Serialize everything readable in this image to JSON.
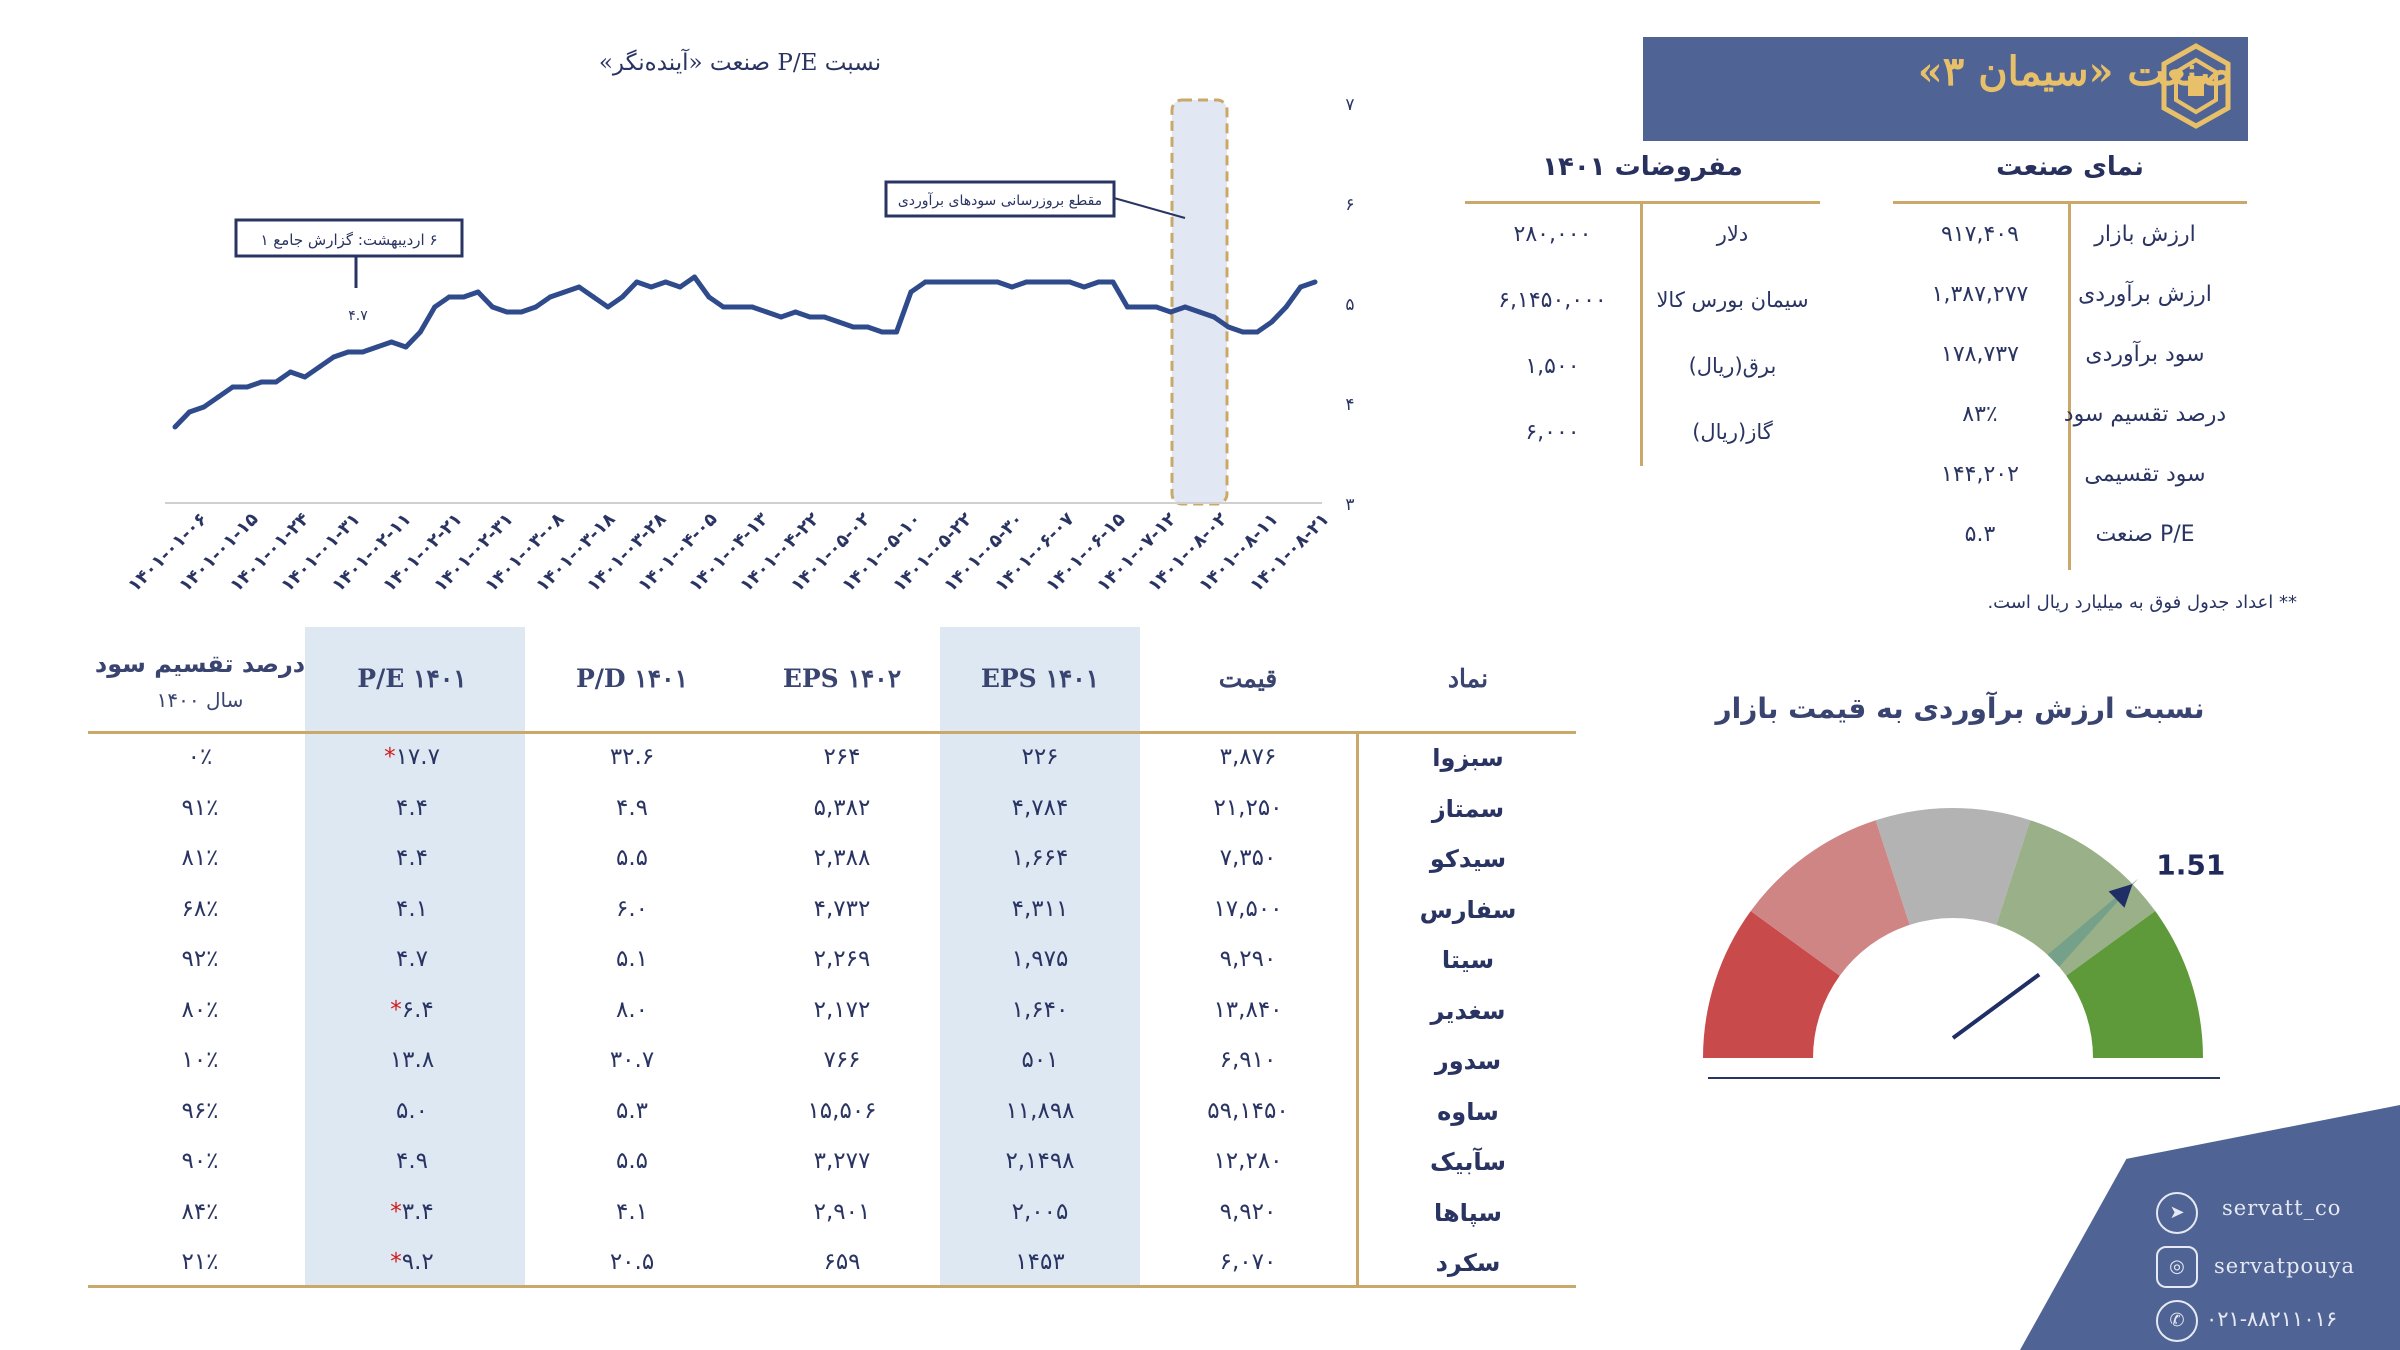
{
  "header": {
    "title": "صنعت «سیمان ۳»"
  },
  "industry_overview": {
    "title": "نمای صنعت",
    "rows": [
      {
        "label": "ارزش بازار",
        "value": "۹۱۷,۴۰۹"
      },
      {
        "label": "ارزش برآوردی",
        "value": "۱,۳۸۷,۲۷۷"
      },
      {
        "label": "سود برآوردی",
        "value": "۱۷۸,۷۳۷"
      },
      {
        "label": "درصد تقسیم سود",
        "value": "۸۳٪"
      },
      {
        "label": "سود تقسیمی",
        "value": "۱۴۴,۲۰۲"
      },
      {
        "label": "P/E صنعت",
        "value": "۵.۳"
      }
    ]
  },
  "assumptions": {
    "title": "مفروضات ۱۴۰۱",
    "rows": [
      {
        "label": "دلار",
        "value": "۲۸۰,۰۰۰"
      },
      {
        "label": "سیمان بورس کالا",
        "value": "۶,۱۴۵۰,۰۰۰"
      },
      {
        "label": "برق(ریال)",
        "value": "۱,۵۰۰"
      },
      {
        "label": "گاز(ریال)",
        "value": "۶,۰۰۰"
      }
    ]
  },
  "footnote": "** اعداد جدول فوق به میلیارد ریال است.",
  "chart_data": {
    "type": "line",
    "title": "نسبت P/E صنعت «آینده‌نگر»",
    "ylim": [
      3,
      7
    ],
    "yticks": [
      "۷",
      "۶",
      "۵",
      "۴",
      "۳"
    ],
    "x_tick_labels": [
      "۱۴۰۱-۰۱-۰۶",
      "۱۴۰۱-۰۱-۱۵",
      "۱۴۰۱-۰۱-۲۴",
      "۱۴۰۱-۰۱-۳۱",
      "۱۴۰۱-۰۲-۱۱",
      "۱۴۰۱-۰۲-۲۱",
      "۱۴۰۱-۰۲-۳۱",
      "۱۴۰۱-۰۳-۰۸",
      "۱۴۰۱-۰۳-۱۸",
      "۱۴۰۱-۰۳-۲۸",
      "۱۴۰۱-۰۴-۰۵",
      "۱۴۰۱-۰۴-۱۳",
      "۱۴۰۱-۰۴-۲۲",
      "۱۴۰۱-۰۵-۰۲",
      "۱۴۰۱-۰۵-۱۰",
      "۱۴۰۱-۰۵-۲۲",
      "۱۴۰۱-۰۵-۳۰",
      "۱۴۰۱-۰۶-۰۷",
      "۱۴۰۱-۰۶-۱۵",
      "۱۴۰۱-۰۷-۱۲",
      "۱۴۰۱-۰۸-۰۲",
      "۱۴۰۱-۰۸-۱۱",
      "۱۴۰۱-۰۸-۲۱"
    ],
    "values": [
      3.75,
      3.9,
      3.95,
      4.05,
      4.15,
      4.15,
      4.2,
      4.2,
      4.3,
      4.25,
      4.35,
      4.45,
      4.5,
      4.5,
      4.55,
      4.6,
      4.55,
      4.7,
      4.95,
      5.05,
      5.05,
      5.1,
      4.95,
      4.9,
      4.9,
      4.95,
      5.05,
      5.1,
      5.15,
      5.05,
      4.95,
      5.05,
      5.2,
      5.15,
      5.2,
      5.15,
      5.25,
      5.05,
      4.95,
      4.95,
      4.95,
      4.9,
      4.85,
      4.9,
      4.85,
      4.85,
      4.8,
      4.75,
      4.75,
      4.7,
      4.7,
      5.1,
      5.2,
      5.2,
      5.2,
      5.2,
      5.2,
      5.2,
      5.15,
      5.2,
      5.2,
      5.2,
      5.2,
      5.15,
      5.2,
      5.2,
      4.95,
      4.95,
      4.95,
      4.9,
      4.95,
      4.9,
      4.85,
      4.75,
      4.7,
      4.7,
      4.8,
      4.95,
      5.15,
      5.2
    ],
    "annotations": [
      {
        "text": "۶ اردیبهشت: گزارش جامع ۱",
        "value_label": "۴.۷"
      },
      {
        "text": "مقطع بروزرسانی سودهای برآوردی"
      }
    ],
    "highlight_color": "#e2e7f4"
  },
  "stock_table": {
    "columns": [
      "نماد",
      "قیمت",
      "EPS ۱۴۰۱",
      "EPS ۱۴۰۲",
      "P/D ۱۴۰۱",
      "P/E  ۱۴۰۱",
      "درصد تقسیم سود",
      "سال ۱۴۰۰"
    ],
    "rows": [
      {
        "symbol": "سبزوا",
        "price": "۳,۸۷۶",
        "eps1401": "۲۲۶",
        "eps1402": "۲۶۴",
        "pd": "۳۲.۶",
        "pe": "۱۷.۷",
        "star": true,
        "div": "۰٪"
      },
      {
        "symbol": "سمتاز",
        "price": "۲۱,۲۵۰",
        "eps1401": "۴,۷۸۴",
        "eps1402": "۵,۳۸۲",
        "pd": "۴.۹",
        "pe": "۴.۴",
        "star": false,
        "div": "۹۱٪"
      },
      {
        "symbol": "سیدکو",
        "price": "۷,۳۵۰",
        "eps1401": "۱,۶۶۴",
        "eps1402": "۲,۳۸۸",
        "pd": "۵.۵",
        "pe": "۴.۴",
        "star": false,
        "div": "۸۱٪"
      },
      {
        "symbol": "سفارس",
        "price": "۱۷,۵۰۰",
        "eps1401": "۴,۳۱۱",
        "eps1402": "۴,۷۳۲",
        "pd": "۶.۰",
        "pe": "۴.۱",
        "star": false,
        "div": "۶۸٪"
      },
      {
        "symbol": "سیتا",
        "price": "۹,۲۹۰",
        "eps1401": "۱,۹۷۵",
        "eps1402": "۲,۲۶۹",
        "pd": "۵.۱",
        "pe": "۴.۷",
        "star": false,
        "div": "۹۲٪"
      },
      {
        "symbol": "سغدیر",
        "price": "۱۳,۸۴۰",
        "eps1401": "۱,۶۴۰",
        "eps1402": "۲,۱۷۲",
        "pd": "۸.۰",
        "pe": "۶.۴",
        "star": true,
        "div": "۸۰٪"
      },
      {
        "symbol": "سدور",
        "price": "۶,۹۱۰",
        "eps1401": "۵۰۱",
        "eps1402": "۷۶۶",
        "pd": "۳۰.۷",
        "pe": "۱۳.۸",
        "star": false,
        "div": "۱۰٪"
      },
      {
        "symbol": "ساوه",
        "price": "۵۹,۱۴۵۰",
        "eps1401": "۱۱,۸۹۸",
        "eps1402": "۱۵,۵۰۶",
        "pd": "۵.۳",
        "pe": "۵.۰",
        "star": false,
        "div": "۹۶٪"
      },
      {
        "symbol": "سآبیک",
        "price": "۱۲,۲۸۰",
        "eps1401": "۲,۱۴۹۸",
        "eps1402": "۳,۲۷۷",
        "pd": "۵.۵",
        "pe": "۴.۹",
        "star": false,
        "div": "۹۰٪"
      },
      {
        "symbol": "سپاها",
        "price": "۹,۹۲۰",
        "eps1401": "۲,۰۰۵",
        "eps1402": "۲,۹۰۱",
        "pd": "۴.۱",
        "pe": "۳.۴",
        "star": true,
        "div": "۸۴٪"
      },
      {
        "symbol": "سکرد",
        "price": "۶,۰۷۰",
        "eps1401": "۱۴۵۳",
        "eps1402": "۶۵۹",
        "pd": "۲۰.۵",
        "pe": "۹.۲",
        "star": true,
        "div": "۲۱٪"
      }
    ]
  },
  "gauge": {
    "title": "نسبت ارزش برآوردی به قیمت بازار",
    "value": 1.51,
    "value_label": "1.51",
    "colors": [
      "#c84a4b",
      "#d08585",
      "#b3b3b3",
      "#99b088",
      "#5e9a3a"
    ]
  },
  "contact": {
    "telegram": "servatt_co",
    "instagram": "servatpouya",
    "phone": "۰۲۱-۸۸۲۱۱۰۱۶"
  }
}
